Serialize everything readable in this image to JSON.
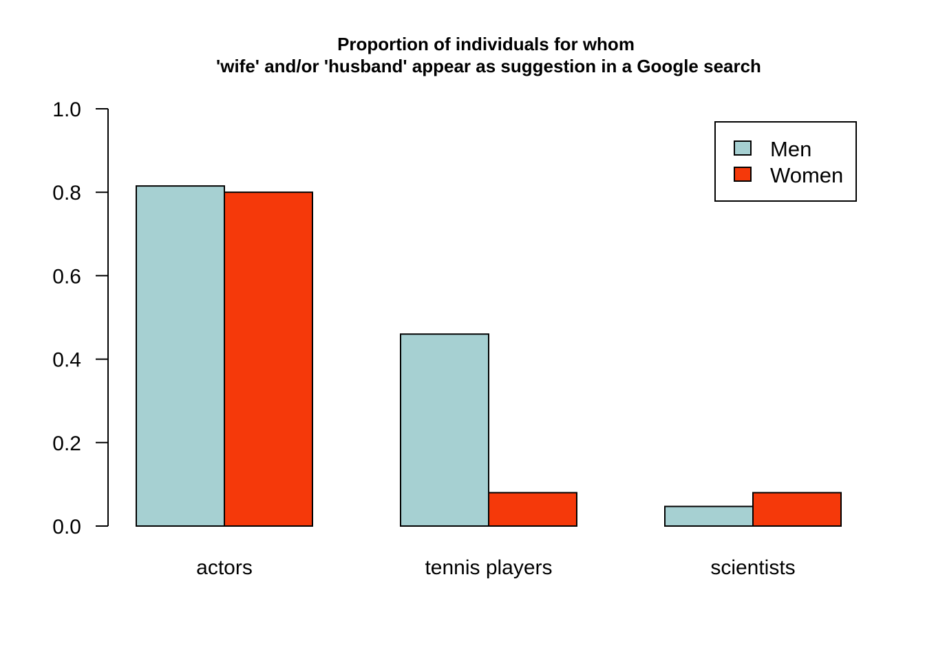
{
  "chart_data": {
    "type": "bar",
    "title_lines": [
      "Proportion of individuals for whom",
      "'wife' and/or 'husband' appear as suggestion in a Google search"
    ],
    "categories": [
      "actors",
      "tennis players",
      "scientists"
    ],
    "series": [
      {
        "name": "Men",
        "color": "#a6d0d2",
        "values": [
          0.815,
          0.46,
          0.047
        ]
      },
      {
        "name": "Women",
        "color": "#f5390a",
        "values": [
          0.8,
          0.08,
          0.08
        ]
      }
    ],
    "ylim": [
      0,
      1.0
    ],
    "yticks": [
      {
        "value": 0.0,
        "label": "0.0"
      },
      {
        "value": 0.2,
        "label": "0.2"
      },
      {
        "value": 0.4,
        "label": "0.4"
      },
      {
        "value": 0.6,
        "label": "0.6"
      },
      {
        "value": 0.8,
        "label": "0.8"
      },
      {
        "value": 1.0,
        "label": "1.0"
      }
    ],
    "grid": false,
    "legend_position": "top-right"
  }
}
